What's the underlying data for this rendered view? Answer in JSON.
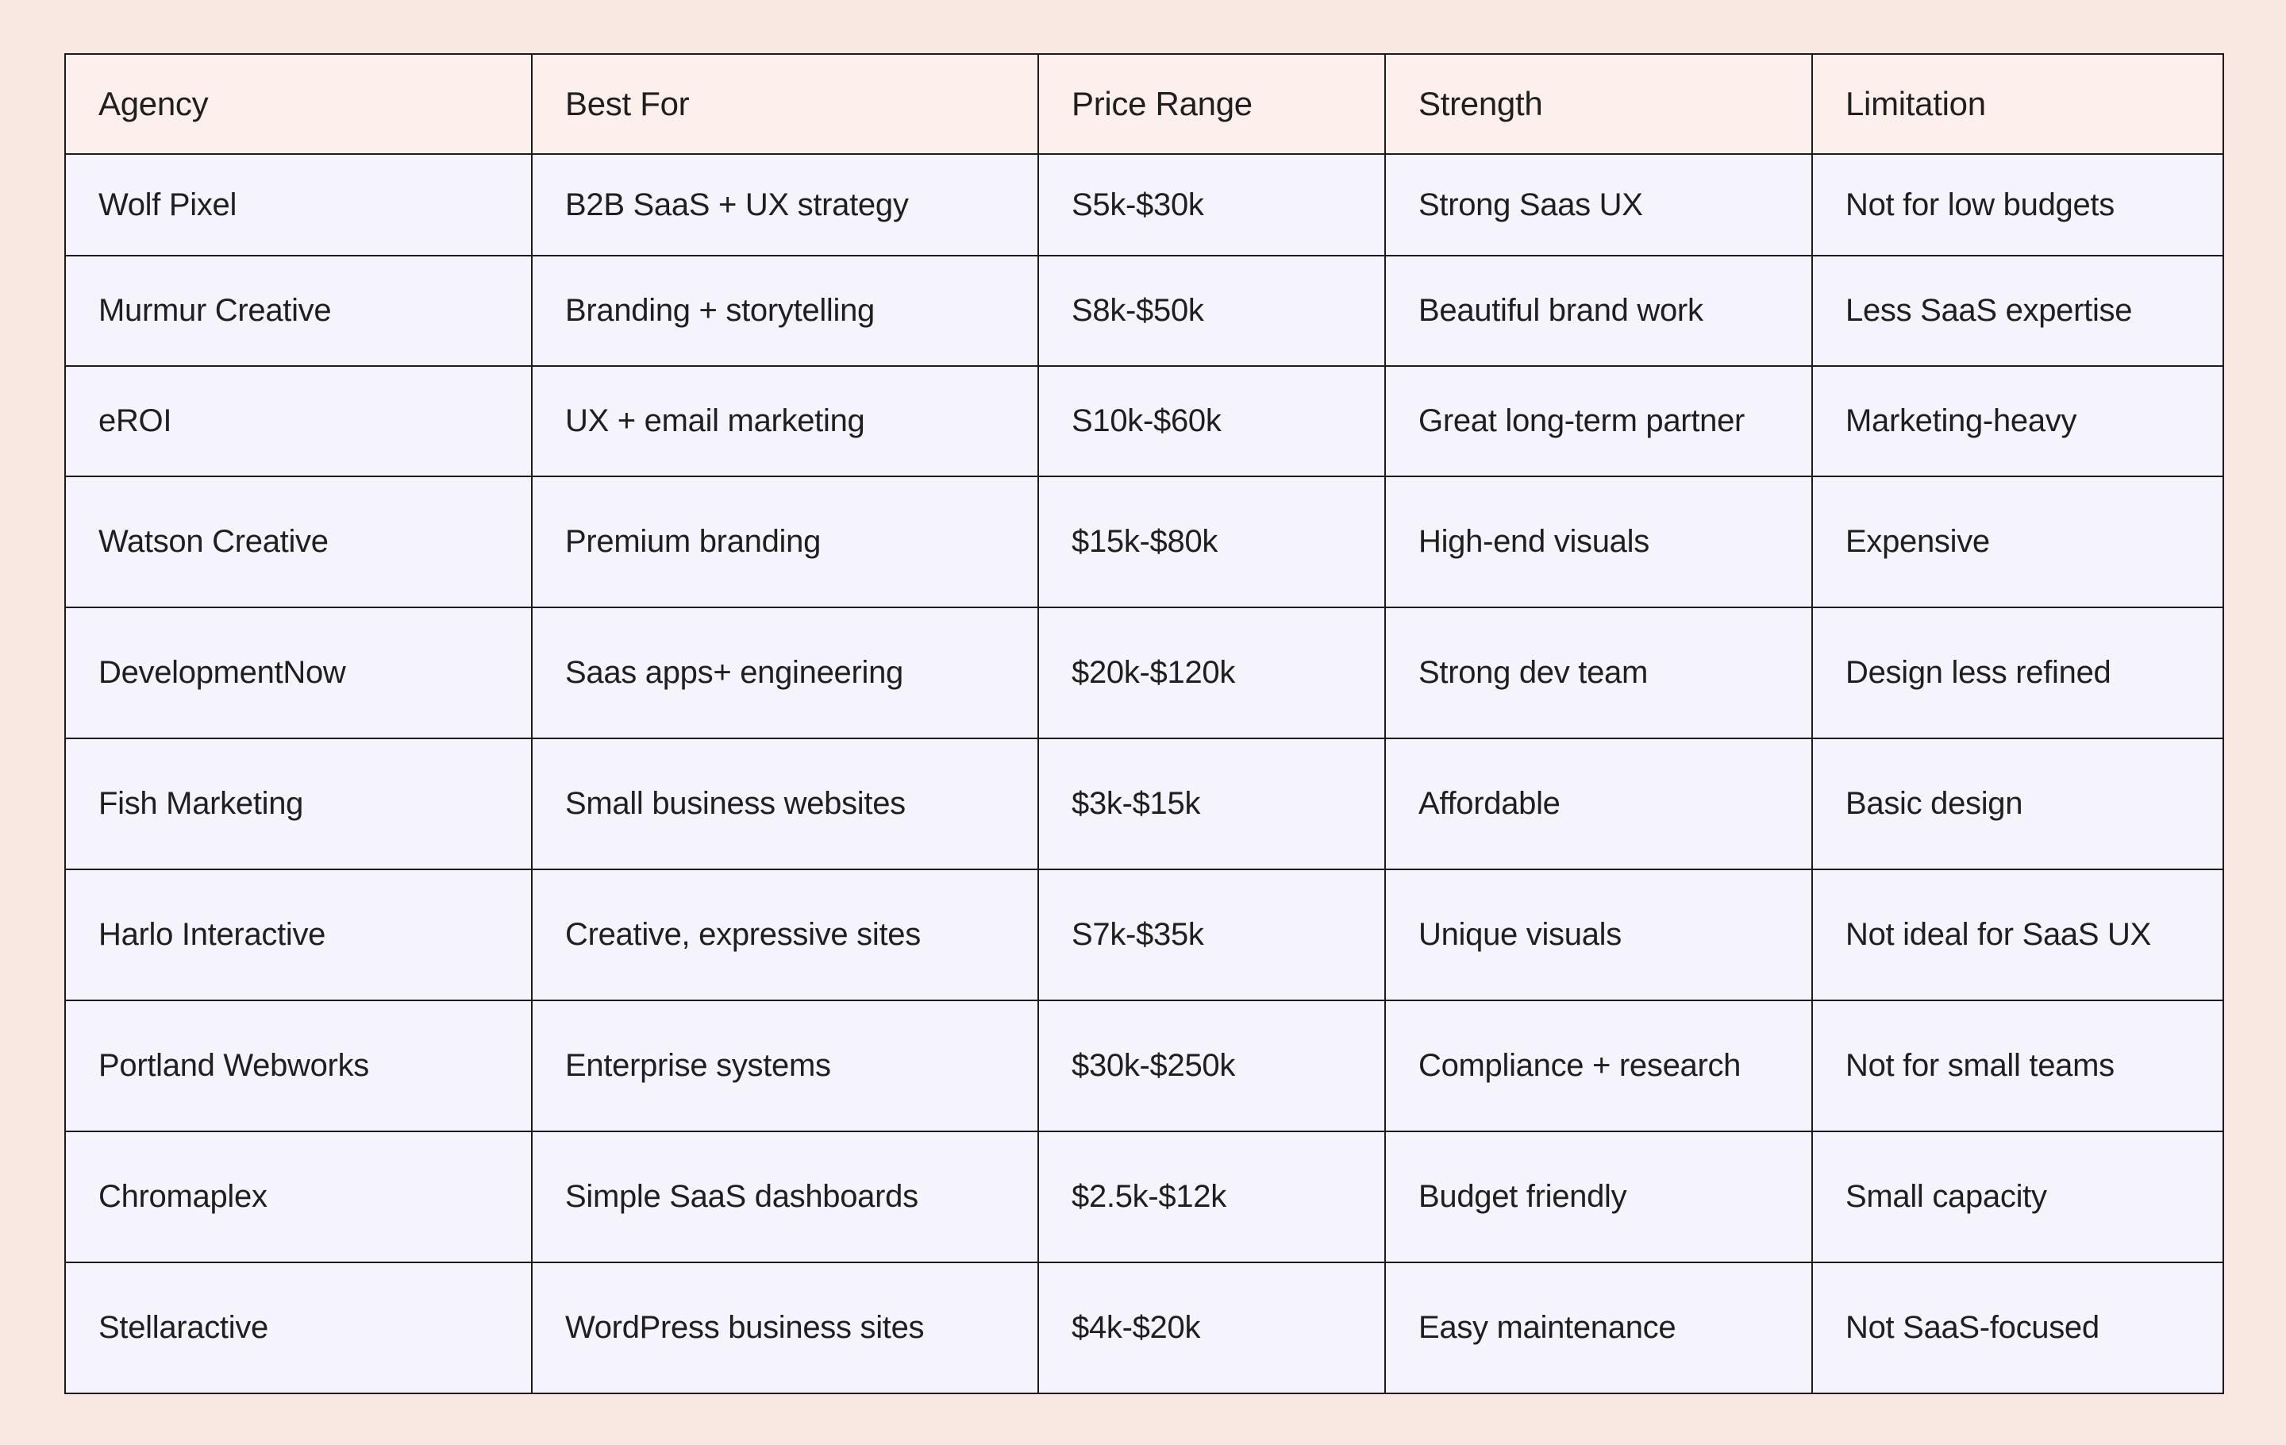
{
  "table": {
    "headers": [
      "Agency",
      "Best For",
      "Price Range",
      "Strength",
      "Limitation"
    ],
    "rows": [
      [
        "Wolf Pixel",
        "B2B SaaS + UX strategy",
        "S5k-$30k",
        "Strong Saas UX",
        "Not for low budgets"
      ],
      [
        "Murmur Creative",
        "Branding + storytelling",
        "S8k-$50k",
        "Beautiful brand work",
        "Less SaaS expertise"
      ],
      [
        "eROI",
        "UX + email marketing",
        "S10k-$60k",
        "Great long-term partner",
        "Marketing-heavy"
      ],
      [
        "Watson Creative",
        "Premium branding",
        "$15k-$80k",
        "High-end visuals",
        "Expensive"
      ],
      [
        "DevelopmentNow",
        "Saas apps+ engineering",
        "$20k-$120k",
        "Strong dev team",
        "Design less refined"
      ],
      [
        "Fish Marketing",
        "Small business websites",
        "$3k-$15k",
        "Affordable",
        "Basic design"
      ],
      [
        "Harlo Interactive",
        "Creative, expressive sites",
        "S7k-$35k",
        "Unique visuals",
        "Not ideal for SaaS UX"
      ],
      [
        "Portland Webworks",
        "Enterprise systems",
        "$30k-$250k",
        "Compliance + research",
        "Not for small teams"
      ],
      [
        "Chromaplex",
        "Simple SaaS dashboards",
        "$2.5k-$12k",
        "Budget friendly",
        "Small capacity"
      ],
      [
        "Stellaractive",
        "WordPress business sites",
        "$4k-$20k",
        "Easy maintenance",
        "Not SaaS-focused"
      ]
    ]
  }
}
